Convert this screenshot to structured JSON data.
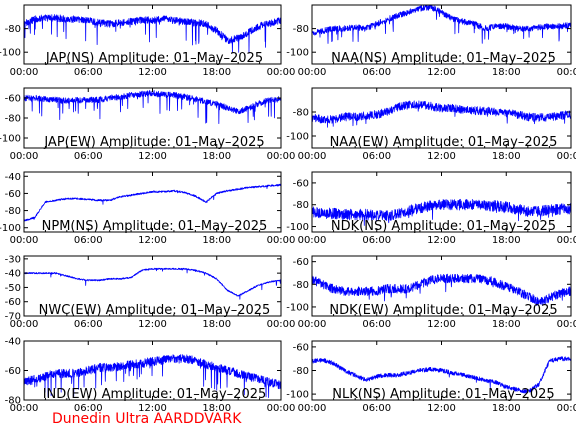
{
  "figure": {
    "footer": "Dunedin Ultra AARDDVARK",
    "footer_color": "#ff0000",
    "trace_color": "#0000ff"
  },
  "chart_data": [
    {
      "type": "line",
      "title": "JAP(NS) Amplitude: 01–May–2025",
      "xlabel": "",
      "ylabel": "",
      "xlim": [
        0,
        24
      ],
      "ylim": [
        -110,
        -60
      ],
      "xticks": [
        "00:00",
        "06:00",
        "12:00",
        "18:00",
        "00:00"
      ],
      "yticks": [
        -100,
        -80
      ],
      "series": [
        {
          "x": [
            0,
            1,
            2,
            3,
            4,
            5,
            6,
            7,
            8,
            9,
            10,
            11,
            12,
            13,
            14,
            15,
            16,
            17,
            18,
            19,
            20,
            21,
            22,
            23,
            24
          ],
          "y": [
            -76,
            -72,
            -71,
            -71,
            -72,
            -72,
            -73,
            -75,
            -76,
            -75,
            -74,
            -73,
            -73,
            -72,
            -73,
            -74,
            -75,
            -76,
            -82,
            -90,
            -88,
            -83,
            -78,
            -75,
            -73
          ],
          "noise": 3,
          "spike_rate": 0.05,
          "spike_depth": 20
        }
      ]
    },
    {
      "type": "line",
      "title": "NAA(NS) Amplitude: 01–May–2025",
      "xlabel": "",
      "ylabel": "",
      "xlim": [
        0,
        24
      ],
      "ylim": [
        -110,
        -60
      ],
      "xticks": [
        "00:00",
        "06:00",
        "12:00",
        "18:00",
        "00:00"
      ],
      "yticks": [
        -100,
        -80
      ],
      "series": [
        {
          "x": [
            0,
            1,
            2,
            3,
            4,
            5,
            6,
            7,
            8,
            9,
            10,
            11,
            12,
            13,
            14,
            15,
            16,
            17,
            18,
            19,
            20,
            21,
            22,
            23,
            24
          ],
          "y": [
            -84,
            -82,
            -80,
            -80,
            -79,
            -80,
            -76,
            -72,
            -69,
            -66,
            -63,
            -62,
            -66,
            -72,
            -74,
            -76,
            -80,
            -78,
            -78,
            -80,
            -80,
            -79,
            -78,
            -78,
            -77
          ],
          "noise": 2.5,
          "spike_rate": 0.03,
          "spike_depth": 12
        }
      ]
    },
    {
      "type": "line",
      "title": "JAP(EW) Amplitude: 01–May–2025",
      "xlabel": "",
      "ylabel": "",
      "xlim": [
        0,
        24
      ],
      "ylim": [
        -110,
        -50
      ],
      "xticks": [
        "00:00",
        "06:00",
        "12:00",
        "18:00",
        "00:00"
      ],
      "yticks": [
        -100,
        -80,
        -60
      ],
      "series": [
        {
          "x": [
            0,
            1,
            2,
            3,
            4,
            5,
            6,
            7,
            8,
            9,
            10,
            11,
            12,
            13,
            14,
            15,
            16,
            17,
            18,
            19,
            20,
            21,
            22,
            23,
            24
          ],
          "y": [
            -60,
            -60,
            -61,
            -62,
            -63,
            -62,
            -62,
            -62,
            -60,
            -59,
            -57,
            -56,
            -55,
            -57,
            -57,
            -59,
            -61,
            -64,
            -66,
            -70,
            -74,
            -70,
            -65,
            -62,
            -61
          ],
          "noise": 3,
          "spike_rate": 0.05,
          "spike_depth": 20
        }
      ]
    },
    {
      "type": "line",
      "title": "NAA(EW) Amplitude: 01–May–2025",
      "xlabel": "",
      "ylabel": "",
      "xlim": [
        0,
        24
      ],
      "ylim": [
        -110,
        -60
      ],
      "xticks": [
        "00:00",
        "06:00",
        "12:00",
        "18:00",
        "00:00"
      ],
      "yticks": [
        -100,
        -80
      ],
      "series": [
        {
          "x": [
            0,
            1,
            2,
            3,
            4,
            5,
            6,
            7,
            8,
            9,
            10,
            11,
            12,
            13,
            14,
            15,
            16,
            17,
            18,
            19,
            20,
            21,
            22,
            23,
            24
          ],
          "y": [
            -85,
            -86,
            -86,
            -84,
            -84,
            -83,
            -82,
            -80,
            -76,
            -74,
            -74,
            -75,
            -77,
            -77,
            -78,
            -79,
            -79,
            -80,
            -81,
            -82,
            -84,
            -85,
            -84,
            -83,
            -82
          ],
          "noise": 3.5,
          "spike_rate": 0.02,
          "spike_depth": 10
        }
      ]
    },
    {
      "type": "line",
      "title": "NPM(NS) Amplitude: 01–May–2025",
      "xlabel": "",
      "ylabel": "",
      "xlim": [
        0,
        24
      ],
      "ylim": [
        -105,
        -35
      ],
      "xticks": [
        "00:00",
        "06:00",
        "12:00",
        "18:00",
        "00:00"
      ],
      "yticks": [
        -100,
        -80,
        -60,
        -40
      ],
      "series": [
        {
          "x": [
            0,
            1,
            2,
            3,
            4,
            5,
            6,
            7,
            8,
            9,
            10,
            11,
            12,
            13,
            14,
            15,
            16,
            17,
            18,
            19,
            20,
            21,
            22,
            23,
            24
          ],
          "y": [
            -92,
            -88,
            -70,
            -68,
            -66,
            -66,
            -67,
            -68,
            -68,
            -64,
            -62,
            -60,
            -58,
            -58,
            -57,
            -59,
            -63,
            -70,
            -60,
            -57,
            -55,
            -53,
            -52,
            -51,
            -50
          ],
          "noise": 1,
          "spike_rate": 0.01,
          "spike_depth": 5
        }
      ]
    },
    {
      "type": "line",
      "title": "NDK(NS) Amplitude: 01–May–2025",
      "xlabel": "",
      "ylabel": "",
      "xlim": [
        0,
        24
      ],
      "ylim": [
        -105,
        -50
      ],
      "xticks": [
        "00:00",
        "06:00",
        "12:00",
        "18:00",
        "00:00"
      ],
      "yticks": [
        -100,
        -80,
        -60
      ],
      "series": [
        {
          "x": [
            0,
            1,
            2,
            3,
            4,
            5,
            6,
            7,
            8,
            9,
            10,
            11,
            12,
            13,
            14,
            15,
            16,
            17,
            18,
            19,
            20,
            21,
            22,
            23,
            24
          ],
          "y": [
            -86,
            -88,
            -88,
            -89,
            -89,
            -89,
            -90,
            -90,
            -88,
            -85,
            -83,
            -81,
            -80,
            -80,
            -80,
            -80,
            -81,
            -81,
            -82,
            -84,
            -86,
            -86,
            -85,
            -84,
            -84
          ],
          "noise": 5,
          "spike_rate": 0.02,
          "spike_depth": 8
        }
      ]
    },
    {
      "type": "line",
      "title": "NWC(EW) Amplitude: 01–May–2025",
      "xlabel": "",
      "ylabel": "",
      "xlim": [
        0,
        24
      ],
      "ylim": [
        -70,
        -28
      ],
      "xticks": [
        "00:00",
        "06:00",
        "12:00",
        "18:00",
        "00:00"
      ],
      "yticks": [
        -70,
        -60,
        -50,
        -40,
        -30
      ],
      "series": [
        {
          "x": [
            0,
            1,
            2,
            3,
            4,
            5,
            6,
            7,
            8,
            9,
            10,
            11,
            12,
            13,
            14,
            15,
            16,
            17,
            18,
            19,
            20,
            21,
            22,
            23,
            24
          ],
          "y": [
            -40,
            -40,
            -40,
            -40,
            -42,
            -44,
            -45,
            -45,
            -44,
            -44,
            -43,
            -38,
            -37,
            -37,
            -37,
            -37,
            -38,
            -40,
            -44,
            -52,
            -56,
            -52,
            -48,
            -46,
            -45
          ],
          "noise": 0.5,
          "spike_rate": 0.01,
          "spike_depth": 4
        }
      ]
    },
    {
      "type": "line",
      "title": "NDK(EW) Amplitude: 01–May–2025",
      "xlabel": "",
      "ylabel": "",
      "xlim": [
        0,
        24
      ],
      "ylim": [
        -108,
        -55
      ],
      "xticks": [
        "00:00",
        "06:00",
        "12:00",
        "18:00",
        "00:00"
      ],
      "yticks": [
        -100,
        -80,
        -60
      ],
      "series": [
        {
          "x": [
            0,
            1,
            2,
            3,
            4,
            5,
            6,
            7,
            8,
            9,
            10,
            11,
            12,
            13,
            14,
            15,
            16,
            17,
            18,
            19,
            20,
            21,
            22,
            23,
            24
          ],
          "y": [
            -76,
            -80,
            -84,
            -86,
            -86,
            -86,
            -86,
            -84,
            -84,
            -84,
            -80,
            -76,
            -75,
            -75,
            -75,
            -75,
            -76,
            -78,
            -82,
            -86,
            -90,
            -96,
            -92,
            -88,
            -86
          ],
          "noise": 4,
          "spike_rate": 0.02,
          "spike_depth": 8
        }
      ]
    },
    {
      "type": "line",
      "title": "IND(EW) Amplitude: 01–May–2025",
      "xlabel": "",
      "ylabel": "",
      "xlim": [
        0,
        24
      ],
      "ylim": [
        -80,
        -40
      ],
      "xticks": [
        "00:00",
        "06:00",
        "12:00",
        "18:00",
        "00:00"
      ],
      "yticks": [
        -80,
        -60,
        -40
      ],
      "series": [
        {
          "x": [
            0,
            1,
            2,
            3,
            4,
            5,
            6,
            7,
            8,
            9,
            10,
            11,
            12,
            13,
            14,
            15,
            16,
            17,
            18,
            19,
            20,
            21,
            22,
            23,
            24
          ],
          "y": [
            -68,
            -66,
            -64,
            -62,
            -62,
            -62,
            -60,
            -58,
            -58,
            -57,
            -56,
            -55,
            -54,
            -53,
            -52,
            -52,
            -53,
            -56,
            -58,
            -60,
            -62,
            -64,
            -66,
            -68,
            -70
          ],
          "noise": 3,
          "spike_rate": 0.05,
          "spike_depth": 15
        }
      ]
    },
    {
      "type": "line",
      "title": "NLK(NS) Amplitude: 01–May–2025",
      "xlabel": "",
      "ylabel": "",
      "xlim": [
        0,
        24
      ],
      "ylim": [
        -105,
        -55
      ],
      "xticks": [
        "00:00",
        "06:00",
        "12:00",
        "18:00",
        "00:00"
      ],
      "yticks": [
        -100,
        -80,
        -60
      ],
      "series": [
        {
          "x": [
            0,
            1,
            2,
            3,
            4,
            5,
            6,
            7,
            8,
            9,
            10,
            11,
            12,
            13,
            14,
            15,
            16,
            17,
            18,
            19,
            20,
            21,
            22,
            23,
            24
          ],
          "y": [
            -72,
            -71,
            -74,
            -80,
            -84,
            -88,
            -85,
            -84,
            -84,
            -82,
            -80,
            -79,
            -80,
            -82,
            -84,
            -86,
            -88,
            -90,
            -94,
            -96,
            -98,
            -92,
            -72,
            -70,
            -70
          ],
          "noise": 1.8,
          "spike_rate": 0.01,
          "spike_depth": 6
        }
      ]
    }
  ]
}
